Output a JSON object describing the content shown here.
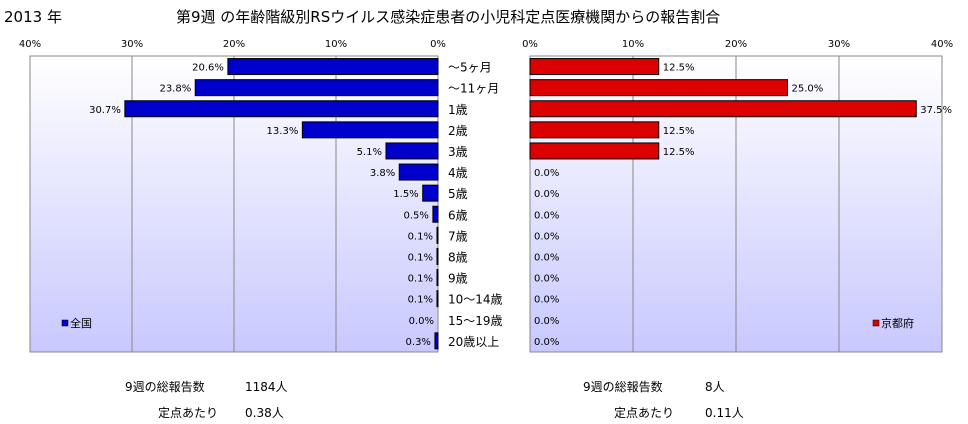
{
  "header": {
    "year": "2013 年",
    "title": "第9週 の年齢階級別RSウイルス感染症患者の小児科定点医療機関からの報告割合"
  },
  "chart_data": [
    {
      "type": "bar",
      "orientation": "horizontal",
      "direction": "reversed",
      "categories": [
        "～5ヶ月",
        "～11ヶ月",
        "1歳",
        "2歳",
        "3歳",
        "4歳",
        "5歳",
        "6歳",
        "7歳",
        "8歳",
        "9歳",
        "10～14歳",
        "15～19歳",
        "20歳以上"
      ],
      "series": [
        {
          "name": "全国",
          "color": "#0000cc",
          "values": [
            20.6,
            23.8,
            30.7,
            13.3,
            5.1,
            3.8,
            1.5,
            0.5,
            0.1,
            0.1,
            0.1,
            0.1,
            0.0,
            0.3
          ],
          "labels": [
            "20.6%",
            "23.8%",
            "30.7%",
            "13.3%",
            "5.1%",
            "3.8%",
            "1.5%",
            "0.5%",
            "0.1%",
            "0.1%",
            "0.1%",
            "0.1%",
            "0.0%",
            "0.3%"
          ]
        }
      ],
      "xlim": [
        0,
        40
      ],
      "xticks": [
        "40%",
        "30%",
        "20%",
        "10%",
        "0%"
      ],
      "legend": "bottom-left",
      "grid": true
    },
    {
      "type": "bar",
      "orientation": "horizontal",
      "categories": [
        "～5ヶ月",
        "～11ヶ月",
        "1歳",
        "2歳",
        "3歳",
        "4歳",
        "5歳",
        "6歳",
        "7歳",
        "8歳",
        "9歳",
        "10～14歳",
        "15～19歳",
        "20歳以上"
      ],
      "series": [
        {
          "name": "京都府",
          "color": "#dd0000",
          "values": [
            12.5,
            25.0,
            37.5,
            12.5,
            12.5,
            0,
            0,
            0,
            0,
            0,
            0,
            0,
            0,
            0
          ],
          "labels": [
            "12.5%",
            "25.0%",
            "37.5%",
            "12.5%",
            "12.5%",
            "0.0%",
            "0.0%",
            "0.0%",
            "0.0%",
            "0.0%",
            "0.0%",
            "0.0%",
            "0.0%",
            "0.0%"
          ]
        }
      ],
      "xlim": [
        0,
        40
      ],
      "xticks": [
        "0%",
        "10%",
        "20%",
        "30%",
        "40%"
      ],
      "legend": "bottom-right",
      "grid": true
    }
  ],
  "summary_left": {
    "total_label": "9週の総報告数",
    "total_value": "1184人",
    "per_label": "定点あたり",
    "per_value": "0.38人"
  },
  "summary_right": {
    "total_label": "9週の総報告数",
    "total_value": "8人",
    "per_label": "定点あたり",
    "per_value": "0.11人"
  }
}
